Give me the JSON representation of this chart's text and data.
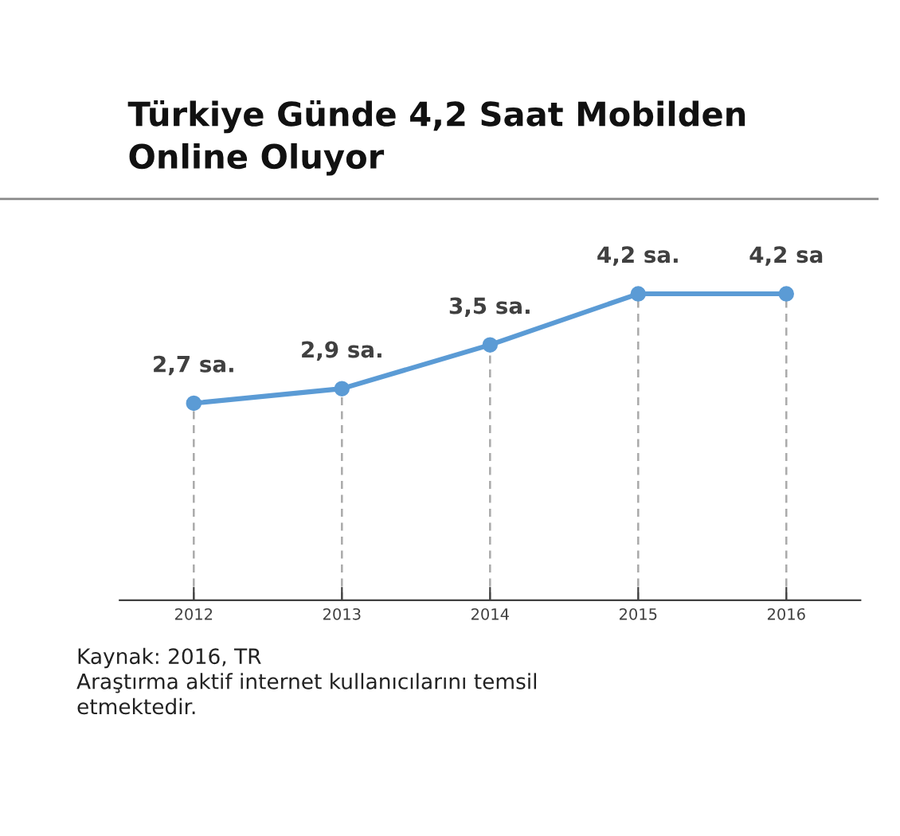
{
  "chart_data": {
    "type": "line",
    "title": "Türkiye Günde 4,2 Saat Mobilden\nOnline Oluyor",
    "categories": [
      "2012",
      "2013",
      "2014",
      "2015",
      "2016"
    ],
    "series": [
      {
        "color": "#5b9bd5",
        "values": [
          2.7,
          2.9,
          3.5,
          4.2,
          4.2
        ],
        "value_labels": [
          "2,7 sa.",
          "2,9 sa.",
          "3,5 sa.",
          "4,2 sa.",
          "4,2 sa"
        ]
      }
    ],
    "ylim": [
      0,
      5.5
    ],
    "tick_labels": "x",
    "marker": "circle",
    "line_style": "solid",
    "grid": "x",
    "legend": false,
    "annotations": [
      "Kaynak: 2016, TR\nAraştırma aktif internet kullanıcılarını temsil\netmektedir."
    ]
  }
}
